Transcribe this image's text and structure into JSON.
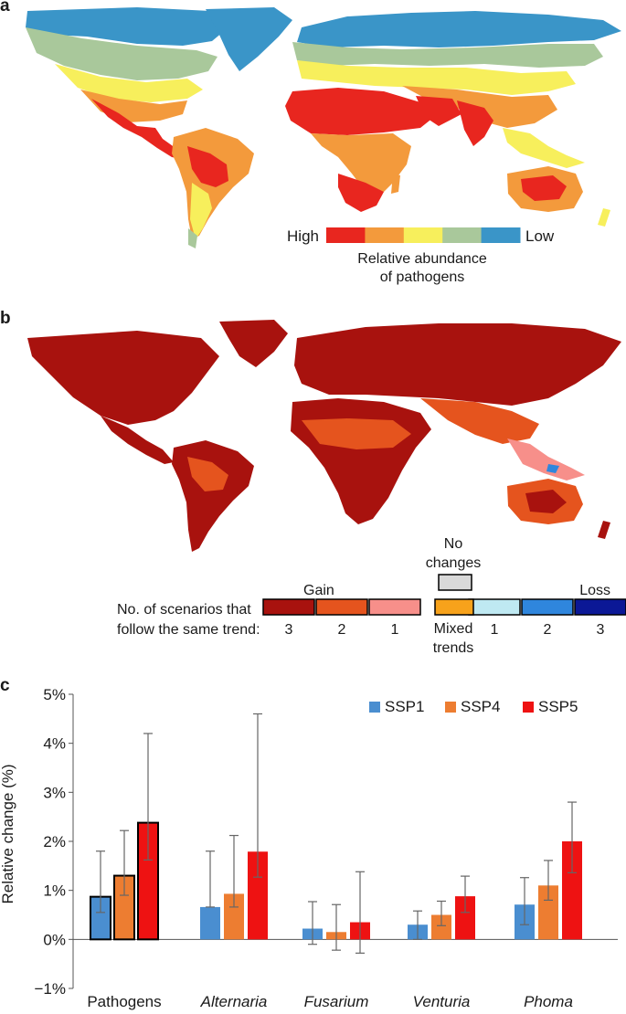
{
  "panel_a": {
    "letter": "a",
    "legend": {
      "high_label": "High",
      "low_label": "Low",
      "caption_line1": "Relative abundance",
      "caption_line2": "of pathogens",
      "scale_colors": [
        "#e8261f",
        "#f39a3c",
        "#f7ef5c",
        "#a9c89b",
        "#3a95c8"
      ]
    },
    "map_colors": {
      "ocean": "#ffffff",
      "high": "#e8261f",
      "mid_high": "#f39a3c",
      "mid": "#f7ef5c",
      "mid_low": "#a9c89b",
      "low": "#3a95c8"
    }
  },
  "panel_b": {
    "letter": "b",
    "legend": {
      "trend_label_line1": "No. of scenarios that",
      "trend_label_line2": "follow the same trend:",
      "gain_label": "Gain",
      "loss_label": "Loss",
      "no_changes_line1": "No",
      "no_changes_line2": "changes",
      "mixed_line1": "Mixed",
      "mixed_line2": "trends",
      "gain_counts": [
        "3",
        "2",
        "1"
      ],
      "loss_counts": [
        "1",
        "2",
        "3"
      ],
      "gain_colors": [
        "#a8120e",
        "#e5541e",
        "#f78f8a"
      ],
      "loss_colors": [
        "#bfe9f2",
        "#2f86dd",
        "#0b1896"
      ],
      "no_change_color": "#d9d9d9",
      "mixed_color": "#f7a21b"
    },
    "map_colors": {
      "gain3": "#a8120e",
      "gain2": "#e5541e",
      "gain1": "#f78f8a",
      "loss2": "#2f86dd"
    }
  },
  "panel_c": {
    "letter": "c",
    "chart_data": {
      "type": "bar",
      "ylabel": "Relative change (%)",
      "ylim": [
        -1,
        5
      ],
      "yticks": [
        -1,
        0,
        1,
        2,
        3,
        4,
        5
      ],
      "ytick_labels": [
        "−1%",
        "0%",
        "1%",
        "2%",
        "3%",
        "4%",
        "5%"
      ],
      "categories": [
        "Pathogens",
        "Alternaria",
        "Fusarium",
        "Venturia",
        "Phoma"
      ],
      "category_italic": [
        false,
        true,
        true,
        true,
        true
      ],
      "highlighted_category": "Pathogens",
      "legend_position": "top-right",
      "series": [
        {
          "name": "SSP1",
          "color": "#4a8ed0",
          "values": [
            0.87,
            0.66,
            0.22,
            0.3,
            0.71
          ],
          "err_low": [
            0.55,
            0.66,
            -0.1,
            0.0,
            0.3
          ],
          "err_high": [
            1.8,
            1.8,
            0.77,
            0.58,
            1.26
          ]
        },
        {
          "name": "SSP4",
          "color": "#ed7d31",
          "values": [
            1.3,
            0.93,
            0.15,
            0.5,
            1.1
          ],
          "err_low": [
            0.9,
            0.66,
            -0.22,
            0.28,
            0.8
          ],
          "err_high": [
            2.22,
            2.12,
            0.71,
            0.78,
            1.61
          ]
        },
        {
          "name": "SSP5",
          "color": "#ee1212",
          "values": [
            2.38,
            1.79,
            0.35,
            0.88,
            2.0
          ],
          "err_low": [
            1.62,
            1.27,
            -0.28,
            0.55,
            1.36
          ],
          "err_high": [
            4.2,
            4.6,
            1.38,
            1.29,
            2.8
          ]
        }
      ]
    }
  }
}
